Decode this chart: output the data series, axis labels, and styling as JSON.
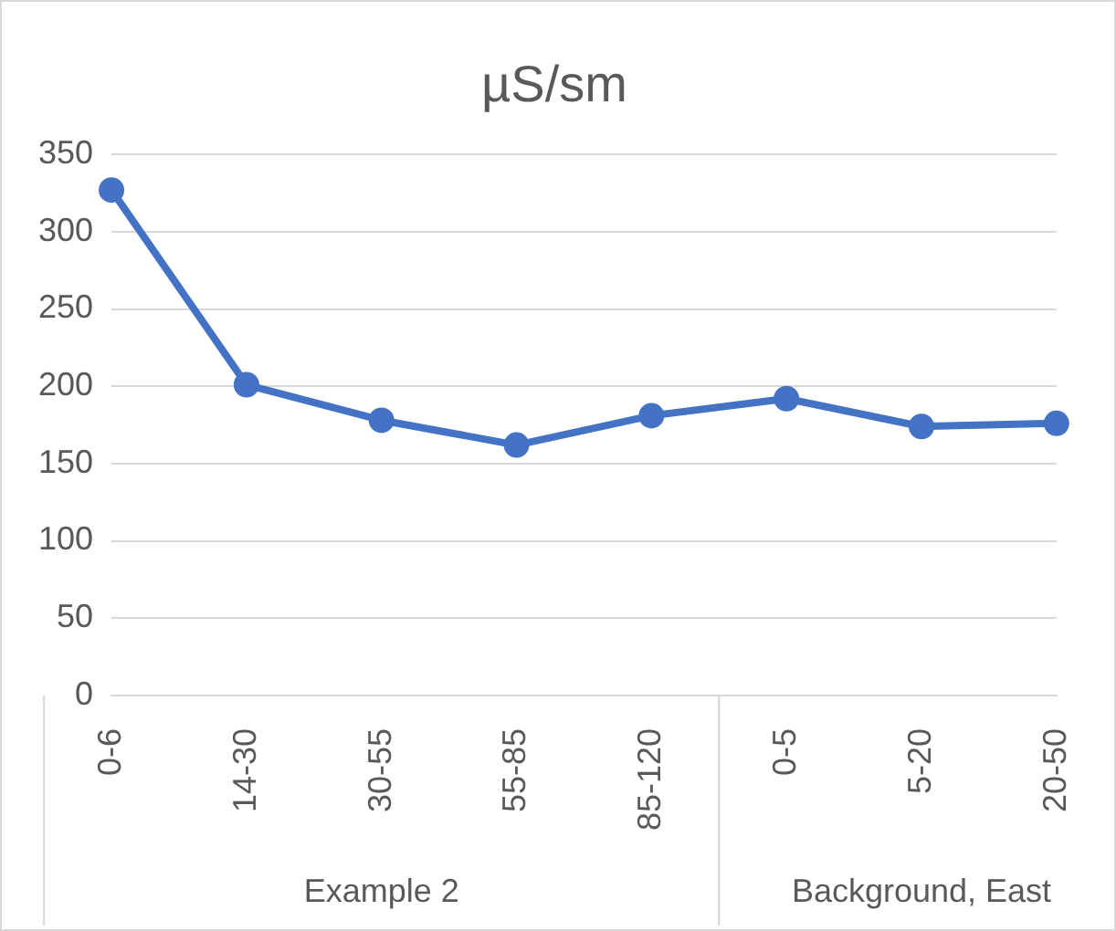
{
  "chart_data": {
    "type": "line",
    "title": "µS/sm",
    "categories": [
      "0-6",
      "14-30",
      "30-55",
      "55-85",
      "85-120",
      "0-5",
      "5-20",
      "20-50"
    ],
    "series": [
      {
        "color": "#4472c4",
        "values": [
          327,
          201,
          178,
          162,
          181,
          192,
          174,
          176
        ]
      }
    ],
    "ylim": [
      0,
      350
    ],
    "yticks": [
      0,
      50,
      100,
      150,
      200,
      250,
      300,
      350
    ],
    "grid": "y",
    "legend": false,
    "marker": "circle",
    "line_style": "solid",
    "annotations": [
      "Example 2",
      "Background, East"
    ]
  }
}
